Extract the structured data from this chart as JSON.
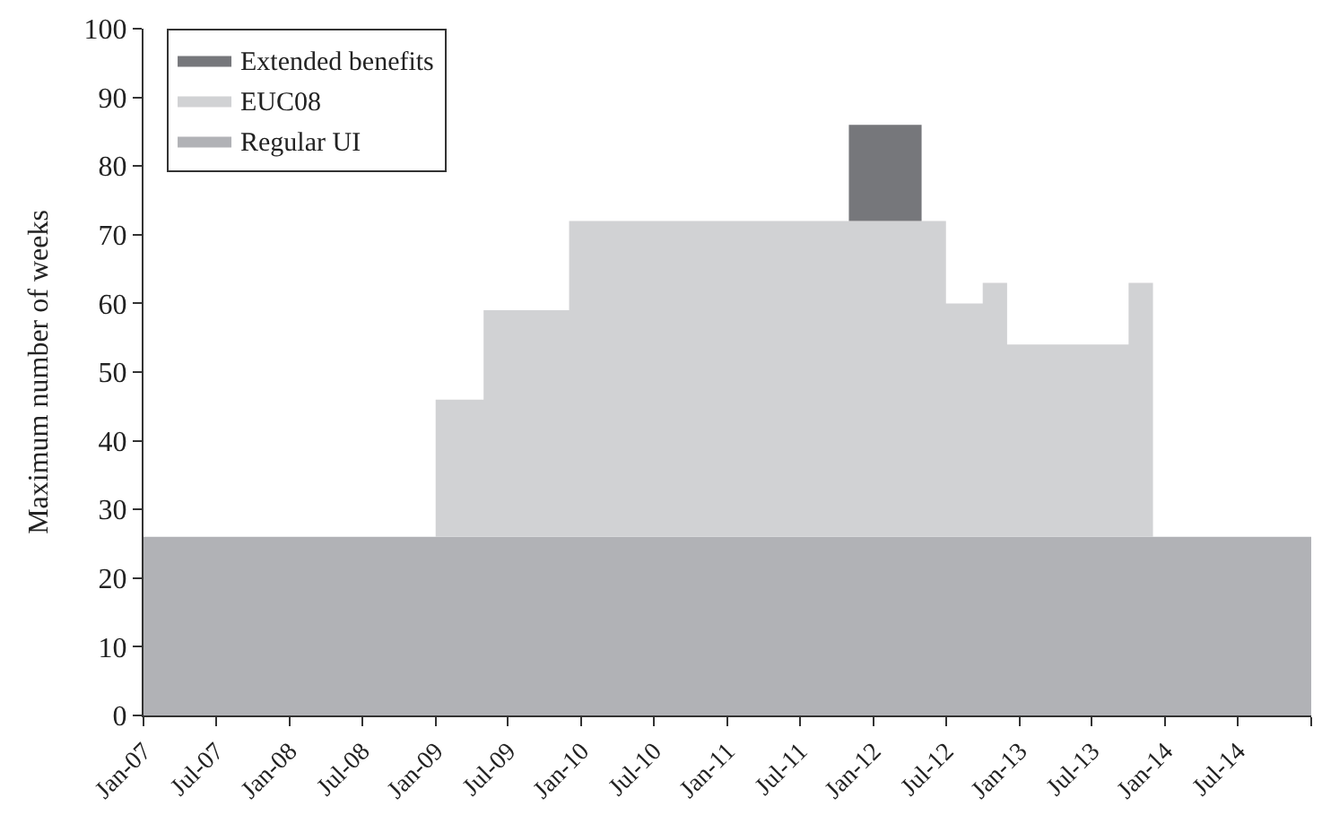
{
  "chart_data": {
    "type": "area",
    "stacked": true,
    "ylabel": "Maximum number of weeks",
    "x": [
      "2007-01",
      "2009-01",
      "2009-01",
      "2009-05",
      "2009-05",
      "2009-12",
      "2009-12",
      "2011-11",
      "2011-11",
      "2012-05",
      "2012-05",
      "2012-07",
      "2012-07",
      "2012-10",
      "2012-10",
      "2012-12",
      "2012-12",
      "2013-10",
      "2013-10",
      "2013-12",
      "2013-12",
      "2015-01"
    ],
    "series": [
      {
        "name": "Regular UI",
        "color": "#b1b2b6",
        "values": [
          26,
          26,
          26,
          26,
          26,
          26,
          26,
          26,
          26,
          26,
          26,
          26,
          26,
          26,
          26,
          26,
          26,
          26,
          26,
          26,
          26,
          26
        ]
      },
      {
        "name": "EUC08",
        "color": "#d1d2d4",
        "values": [
          0,
          0,
          20,
          20,
          33,
          33,
          46,
          46,
          46,
          46,
          46,
          46,
          34,
          34,
          37,
          37,
          28,
          28,
          37,
          37,
          0,
          0
        ]
      },
      {
        "name": "Extended benefits",
        "color": "#76777b",
        "values": [
          0,
          0,
          0,
          0,
          0,
          0,
          0,
          0,
          14,
          14,
          0,
          0,
          0,
          0,
          0,
          0,
          0,
          0,
          0,
          0,
          0,
          0
        ]
      }
    ],
    "xlim": [
      "2007-01",
      "2015-01"
    ],
    "xticks": [
      {
        "value": "2007-01",
        "label": "Jan-07"
      },
      {
        "value": "2007-07",
        "label": "Jul-07"
      },
      {
        "value": "2008-01",
        "label": "Jan-08"
      },
      {
        "value": "2008-07",
        "label": "Jul-08"
      },
      {
        "value": "2009-01",
        "label": "Jan-09"
      },
      {
        "value": "2009-07",
        "label": "Jul-09"
      },
      {
        "value": "2010-01",
        "label": "Jan-10"
      },
      {
        "value": "2010-07",
        "label": "Jul-10"
      },
      {
        "value": "2011-01",
        "label": "Jan-11"
      },
      {
        "value": "2011-07",
        "label": "Jul-11"
      },
      {
        "value": "2012-01",
        "label": "Jan-12"
      },
      {
        "value": "2012-07",
        "label": "Jul-12"
      },
      {
        "value": "2013-01",
        "label": "Jan-13"
      },
      {
        "value": "2013-07",
        "label": "Jul-13"
      },
      {
        "value": "2014-01",
        "label": "Jan-14"
      },
      {
        "value": "2014-07",
        "label": "Jul-14"
      },
      {
        "value": "2015-01",
        "label": null
      }
    ],
    "ylim": [
      0,
      100
    ],
    "yticks": [
      0,
      10,
      20,
      30,
      40,
      50,
      60,
      70,
      80,
      90,
      100
    ],
    "legend": "top left"
  }
}
